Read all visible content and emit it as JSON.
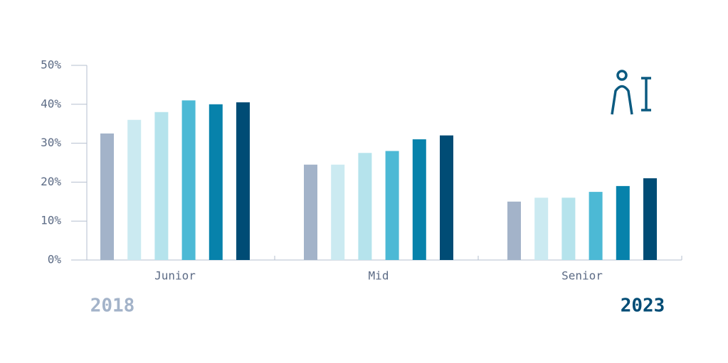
{
  "chart_data": {
    "type": "bar",
    "categories": [
      "Junior",
      "Mid",
      "Senior"
    ],
    "series": [
      {
        "color": "#a3b3c9",
        "values": [
          32.5,
          24.5,
          15
        ]
      },
      {
        "color": "#cbeaf1",
        "values": [
          36,
          24.5,
          16
        ]
      },
      {
        "color": "#b5e3ec",
        "values": [
          38,
          27.5,
          16
        ]
      },
      {
        "color": "#4cb9d5",
        "values": [
          41,
          28,
          17.5
        ]
      },
      {
        "color": "#0782ab",
        "values": [
          40,
          31,
          19
        ]
      },
      {
        "color": "#004c75",
        "values": [
          40.5,
          32,
          21
        ]
      }
    ],
    "ylim": [
      0,
      50
    ],
    "yticks": [
      {
        "value": 0,
        "label": "0%"
      },
      {
        "value": 10,
        "label": "10%"
      },
      {
        "value": 20,
        "label": "20%"
      },
      {
        "value": 30,
        "label": "30%"
      },
      {
        "value": 40,
        "label": "40%"
      },
      {
        "value": 50,
        "label": "50%"
      }
    ],
    "legend_start": "2018",
    "legend_end": "2023"
  }
}
